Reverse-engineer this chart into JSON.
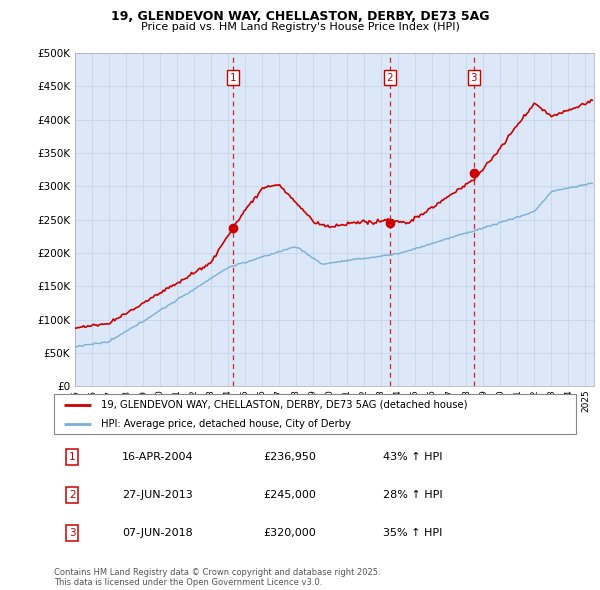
{
  "title_line1": "19, GLENDEVON WAY, CHELLASTON, DERBY, DE73 5AG",
  "title_line2": "Price paid vs. HM Land Registry's House Price Index (HPI)",
  "ytick_values": [
    0,
    50000,
    100000,
    150000,
    200000,
    250000,
    300000,
    350000,
    400000,
    450000,
    500000
  ],
  "ylim": [
    0,
    500000
  ],
  "xlim_start": 1995.0,
  "xlim_end": 2025.5,
  "sale_color": "#cc0000",
  "hpi_color": "#7bafd4",
  "vline_color": "#cc0000",
  "grid_color": "#c8d4e8",
  "background_color": "#dce8f8",
  "sale_markers": [
    {
      "year": 2004.29,
      "price": 236950,
      "label": "1"
    },
    {
      "year": 2013.49,
      "price": 245000,
      "label": "2"
    },
    {
      "year": 2018.44,
      "price": 320000,
      "label": "3"
    }
  ],
  "sale_table": [
    {
      "num": "1",
      "date": "16-APR-2004",
      "price": "£236,950",
      "change": "43% ↑ HPI"
    },
    {
      "num": "2",
      "date": "27-JUN-2013",
      "price": "£245,000",
      "change": "28% ↑ HPI"
    },
    {
      "num": "3",
      "date": "07-JUN-2018",
      "price": "£320,000",
      "change": "35% ↑ HPI"
    }
  ],
  "legend_sale_label": "19, GLENDEVON WAY, CHELLASTON, DERBY, DE73 5AG (detached house)",
  "legend_hpi_label": "HPI: Average price, detached house, City of Derby",
  "footnote": "Contains HM Land Registry data © Crown copyright and database right 2025.\nThis data is licensed under the Open Government Licence v3.0."
}
